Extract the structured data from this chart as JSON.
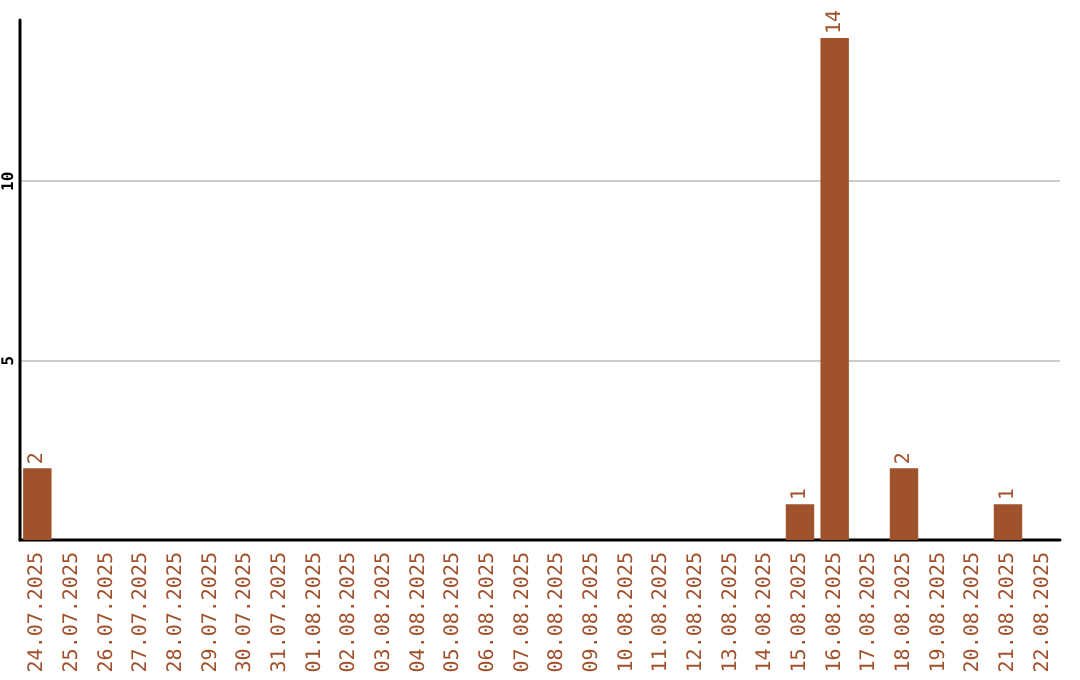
{
  "chart_data": {
    "type": "bar",
    "categories": [
      "24.07.2025",
      "25.07.2025",
      "26.07.2025",
      "27.07.2025",
      "28.07.2025",
      "29.07.2025",
      "30.07.2025",
      "31.07.2025",
      "01.08.2025",
      "02.08.2025",
      "03.08.2025",
      "04.08.2025",
      "05.08.2025",
      "06.08.2025",
      "07.08.2025",
      "08.08.2025",
      "09.08.2025",
      "10.08.2025",
      "11.08.2025",
      "12.08.2025",
      "13.08.2025",
      "14.08.2025",
      "15.08.2025",
      "16.08.2025",
      "17.08.2025",
      "18.08.2025",
      "19.08.2025",
      "20.08.2025",
      "21.08.2025",
      "22.08.2025"
    ],
    "values": [
      2,
      0,
      0,
      0,
      0,
      0,
      0,
      0,
      0,
      0,
      0,
      0,
      0,
      0,
      0,
      0,
      0,
      0,
      0,
      0,
      0,
      0,
      1,
      14,
      0,
      2,
      0,
      0,
      1,
      0
    ],
    "value_labels": [
      "2",
      null,
      null,
      null,
      null,
      null,
      null,
      null,
      null,
      null,
      null,
      null,
      null,
      null,
      null,
      null,
      null,
      null,
      null,
      null,
      null,
      null,
      "1",
      "14",
      null,
      "2",
      null,
      null,
      "1",
      null
    ],
    "color": "#a0522d",
    "ylim": [
      0,
      14.5
    ],
    "yticks": [
      5,
      10
    ],
    "grid": "y"
  }
}
